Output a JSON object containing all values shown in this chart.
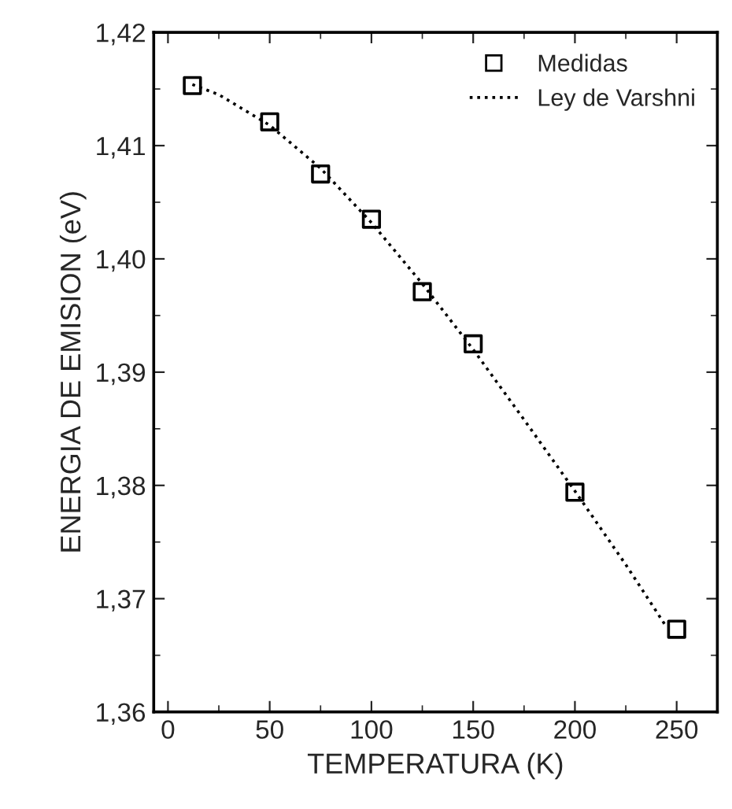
{
  "chart_data": {
    "type": "scatter",
    "xlabel": "TEMPERATURA (K)",
    "ylabel": "ENERGIA DE EMISION (eV)",
    "series": [
      {
        "name": "Medidas",
        "color": "#000000",
        "marker": "square",
        "x": [
          12,
          50,
          75,
          100,
          125,
          150,
          200,
          250
        ],
        "values": [
          1.4153,
          1.4121,
          1.4075,
          1.4035,
          1.3971,
          1.3925,
          1.3794,
          1.3673
        ]
      },
      {
        "name": "Ley de Varshni",
        "type": "line",
        "color": "#000000",
        "line_style": "dotted",
        "x": [
          12,
          25,
          50,
          75,
          100,
          125,
          150,
          175,
          200,
          225,
          245
        ],
        "values": [
          1.4154,
          1.4145,
          1.4118,
          1.408,
          1.4032,
          1.3978,
          1.392,
          1.3858,
          1.3795,
          1.373,
          1.3675
        ]
      }
    ],
    "xlim": [
      -7,
      270
    ],
    "xticks": [
      0,
      50,
      100,
      150,
      200,
      250
    ],
    "ylim": [
      1.36,
      1.42
    ],
    "yticks": [
      {
        "value": 1.36,
        "label": "1,36"
      },
      {
        "value": 1.37,
        "label": "1,37"
      },
      {
        "value": 1.38,
        "label": "1,38"
      },
      {
        "value": 1.39,
        "label": "1,39"
      },
      {
        "value": 1.4,
        "label": "1,40"
      },
      {
        "value": 1.41,
        "label": "1,41"
      },
      {
        "value": 1.42,
        "label": "1,42"
      }
    ],
    "legend": "top right",
    "grid": false
  }
}
